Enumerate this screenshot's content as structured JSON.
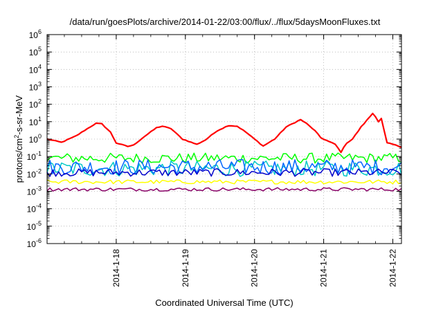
{
  "chart_data": {
    "type": "line",
    "title": "/data/run/goesPlots/archive/2014-01-22/03:00/flux/../flux/5daysMoonFluxes.txt",
    "xlabel": "Coordinated Universal Time (UTC)",
    "ylabel": {
      "base": "protons/cm",
      "sup": "2",
      "rest": "-s-sr-MeV"
    },
    "y_scale": "log",
    "ylim_exp": [
      -6,
      6
    ],
    "y_ticks": [
      {
        "base": "10",
        "exp": "-6"
      },
      {
        "base": "10",
        "exp": "-5"
      },
      {
        "base": "10",
        "exp": "-4"
      },
      {
        "base": "10",
        "exp": "-3"
      },
      {
        "base": "10",
        "exp": "-2"
      },
      {
        "base": "10",
        "exp": "-1"
      },
      {
        "base": "10",
        "exp": "0"
      },
      {
        "base": "10",
        "exp": "1"
      },
      {
        "base": "10",
        "exp": "2"
      },
      {
        "base": "10",
        "exp": "3"
      },
      {
        "base": "10",
        "exp": "4"
      },
      {
        "base": "10",
        "exp": "5"
      },
      {
        "base": "10",
        "exp": "6"
      }
    ],
    "x_range": [
      "2014-01-17 00:00",
      "2014-01-22 03:00"
    ],
    "x_ticks": [
      {
        "label": "2014-1-18",
        "value": "2014-01-18 00:00"
      },
      {
        "label": "2014-1-19",
        "value": "2014-01-19 00:00"
      },
      {
        "label": "2014-1-20",
        "value": "2014-01-20 00:00"
      },
      {
        "label": "2014-1-21",
        "value": "2014-01-21 00:00"
      },
      {
        "label": "2014-1-22",
        "value": "2014-01-22 00:00"
      }
    ],
    "grid": true,
    "series": [
      {
        "color": "#ff0000",
        "width": 2.2,
        "noise": 0.04,
        "points": [
          [
            "2014-01-17 00:00",
            1.0
          ],
          [
            "2014-01-17 05:00",
            0.65
          ],
          [
            "2014-01-17 10:00",
            1.5
          ],
          [
            "2014-01-17 14:00",
            4.0
          ],
          [
            "2014-01-17 17:00",
            8.0
          ],
          [
            "2014-01-17 19:00",
            7.5
          ],
          [
            "2014-01-17 22:00",
            2.5
          ],
          [
            "2014-01-18 00:00",
            0.6
          ],
          [
            "2014-01-18 04:00",
            0.38
          ],
          [
            "2014-01-18 06:00",
            0.45
          ],
          [
            "2014-01-18 10:00",
            1.5
          ],
          [
            "2014-01-18 14:00",
            4.5
          ],
          [
            "2014-01-18 16:00",
            5.5
          ],
          [
            "2014-01-18 19:00",
            4.0
          ],
          [
            "2014-01-18 23:00",
            1.0
          ],
          [
            "2014-01-19 04:00",
            0.5
          ],
          [
            "2014-01-19 07:00",
            0.9
          ],
          [
            "2014-01-19 11:00",
            3.0
          ],
          [
            "2014-01-19 15:00",
            6.0
          ],
          [
            "2014-01-19 18:00",
            5.5
          ],
          [
            "2014-01-19 21:00",
            2.5
          ],
          [
            "2014-01-20 00:00",
            1.0
          ],
          [
            "2014-01-20 03:00",
            0.4
          ],
          [
            "2014-01-20 07:00",
            1.0
          ],
          [
            "2014-01-20 11:00",
            5.0
          ],
          [
            "2014-01-20 14:00",
            9.0
          ],
          [
            "2014-01-20 16:00",
            13.0
          ],
          [
            "2014-01-20 18:00",
            8.0
          ],
          [
            "2014-01-20 21:00",
            3.0
          ],
          [
            "2014-01-20 23:00",
            1.2
          ],
          [
            "2014-01-21 02:00",
            0.7
          ],
          [
            "2014-01-21 04:00",
            0.5
          ],
          [
            "2014-01-21 06:00",
            0.18
          ],
          [
            "2014-01-21 08:00",
            0.6
          ],
          [
            "2014-01-21 10:00",
            1.0
          ],
          [
            "2014-01-21 13:00",
            5.0
          ],
          [
            "2014-01-21 15:00",
            12.0
          ],
          [
            "2014-01-21 17:00",
            30.0
          ],
          [
            "2014-01-21 18:00",
            20.0
          ],
          [
            "2014-01-21 19:00",
            10.0
          ],
          [
            "2014-01-21 20:00",
            15.0
          ],
          [
            "2014-01-21 21:00",
            3.0
          ],
          [
            "2014-01-21 22:00",
            0.6
          ],
          [
            "2014-01-22 00:00",
            0.5
          ],
          [
            "2014-01-22 03:00",
            0.35
          ]
        ]
      },
      {
        "color": "#00ff00",
        "width": 1.5,
        "level": 0.08,
        "noise": 0.3,
        "points": []
      },
      {
        "color": "#00c8c8",
        "width": 1.5,
        "level": 0.02,
        "noise": 0.45,
        "points": []
      },
      {
        "color": "#0066ff",
        "width": 1.5,
        "level": 0.025,
        "noise": 0.45,
        "points": []
      },
      {
        "color": "#0000cc",
        "width": 1.5,
        "level": 0.012,
        "noise": 0.22,
        "points": []
      },
      {
        "color": "#ffff00",
        "width": 1.5,
        "level": 0.0035,
        "noise": 0.12,
        "points": []
      },
      {
        "color": "#880066",
        "width": 1.5,
        "level": 0.0013,
        "noise": 0.1,
        "points": []
      }
    ]
  }
}
